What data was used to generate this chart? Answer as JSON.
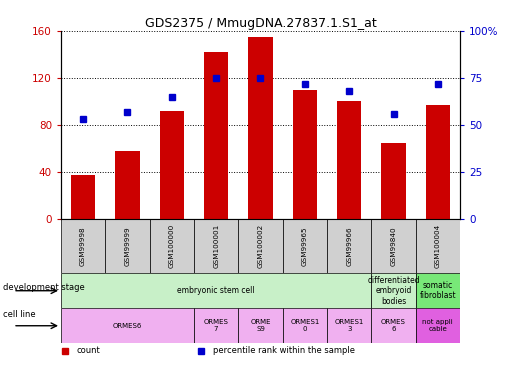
{
  "title": "GDS2375 / MmugDNA.27837.1.S1_at",
  "samples": [
    "GSM99998",
    "GSM99999",
    "GSM100000",
    "GSM100001",
    "GSM100002",
    "GSM99965",
    "GSM99966",
    "GSM99840",
    "GSM100004"
  ],
  "counts": [
    38,
    58,
    92,
    142,
    155,
    110,
    100,
    65,
    97
  ],
  "percentiles": [
    53,
    57,
    65,
    75,
    75,
    72,
    68,
    56,
    72
  ],
  "ylim_left": [
    0,
    160
  ],
  "ylim_right": [
    0,
    100
  ],
  "yticks_left": [
    0,
    40,
    80,
    120,
    160
  ],
  "yticks_right": [
    0,
    25,
    50,
    75,
    100
  ],
  "yticklabels_right": [
    "0",
    "25",
    "50",
    "75",
    "100%"
  ],
  "bar_color": "#cc0000",
  "dot_color": "#0000cc",
  "bg_color": "#ffffff",
  "sample_row_color": "#d0d0d0",
  "dev_stage_row": {
    "label": "development stage",
    "cells": [
      {
        "text": "embryonic stem cell",
        "span": [
          0,
          7
        ],
        "color": "#c8f0c8"
      },
      {
        "text": "differentiated\nembryoid\nbodies",
        "span": [
          7,
          8
        ],
        "color": "#c8f0c8"
      },
      {
        "text": "somatic\nfibroblast",
        "span": [
          8,
          9
        ],
        "color": "#78e878"
      }
    ]
  },
  "cell_line_row": {
    "label": "cell line",
    "cells": [
      {
        "text": "ORMES6",
        "span": [
          0,
          3
        ],
        "color": "#f0b0f0"
      },
      {
        "text": "ORMES\n7",
        "span": [
          3,
          4
        ],
        "color": "#f0b0f0"
      },
      {
        "text": "ORME\nS9",
        "span": [
          4,
          5
        ],
        "color": "#f0b0f0"
      },
      {
        "text": "ORMES1\n0",
        "span": [
          5,
          6
        ],
        "color": "#f0b0f0"
      },
      {
        "text": "ORMES1\n3",
        "span": [
          6,
          7
        ],
        "color": "#f0b0f0"
      },
      {
        "text": "ORMES\n6",
        "span": [
          7,
          8
        ],
        "color": "#f0b0f0"
      },
      {
        "text": "not appli\ncable",
        "span": [
          8,
          9
        ],
        "color": "#e060e0"
      }
    ]
  },
  "legend_items": [
    {
      "label": "count",
      "color": "#cc0000",
      "marker": "s"
    },
    {
      "label": "percentile rank within the sample",
      "color": "#0000cc",
      "marker": "s"
    }
  ]
}
